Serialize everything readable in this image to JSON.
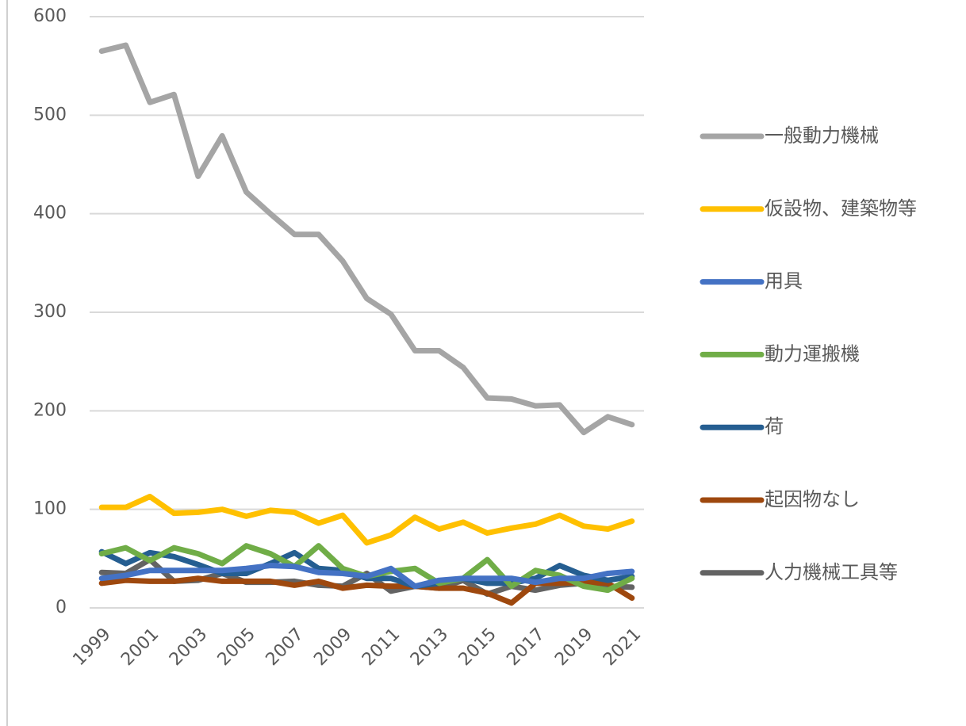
{
  "chart_data": {
    "type": "line",
    "categories": [
      "1999",
      null,
      "2001",
      null,
      "2003",
      null,
      "2005",
      null,
      "2007",
      null,
      "2009",
      null,
      "2011",
      null,
      "2013",
      null,
      "2015",
      null,
      "2017",
      null,
      "2019",
      null,
      "2021"
    ],
    "series": [
      {
        "name": "一般動力機械",
        "color": "#a5a5a5",
        "values": [
          565,
          571,
          513,
          521,
          438,
          479,
          422,
          400,
          379,
          379,
          352,
          314,
          298,
          261,
          261,
          244,
          213,
          212,
          205,
          206,
          178,
          194,
          186
        ]
      },
      {
        "name": "仮設物、建築物等",
        "color": "#ffc000",
        "values": [
          102,
          102,
          113,
          96,
          97,
          100,
          93,
          99,
          97,
          86,
          94,
          66,
          74,
          92,
          80,
          87,
          76,
          81,
          85,
          94,
          83,
          80,
          88
        ]
      },
      {
        "name": "用具",
        "color": "#4472c4",
        "values": [
          30,
          33,
          38,
          38,
          38,
          38,
          40,
          43,
          42,
          36,
          35,
          32,
          40,
          22,
          28,
          30,
          30,
          30,
          26,
          30,
          30,
          35,
          37
        ]
      },
      {
        "name": "動力運搬機",
        "color": "#70ad47",
        "values": [
          55,
          61,
          48,
          61,
          55,
          45,
          63,
          55,
          42,
          63,
          40,
          32,
          37,
          40,
          25,
          30,
          49,
          22,
          38,
          33,
          22,
          18,
          30
        ]
      },
      {
        "name": "荷",
        "color": "#255e91",
        "values": [
          57,
          45,
          56,
          52,
          44,
          35,
          35,
          45,
          56,
          40,
          38,
          30,
          30,
          22,
          25,
          30,
          25,
          25,
          30,
          43,
          33,
          28,
          32
        ]
      },
      {
        "name": "起因物なし",
        "color": "#9e480e",
        "values": [
          25,
          28,
          27,
          27,
          30,
          27,
          27,
          27,
          23,
          27,
          20,
          23,
          22,
          22,
          20,
          20,
          15,
          5,
          25,
          25,
          26,
          25,
          10
        ]
      },
      {
        "name": "人力機械工具等",
        "color": "#636363",
        "values": [
          36,
          35,
          49,
          27,
          28,
          35,
          26,
          26,
          27,
          23,
          22,
          35,
          17,
          22,
          20,
          28,
          14,
          22,
          18,
          23,
          25,
          22,
          21
        ]
      }
    ],
    "ylim": [
      0,
      600
    ],
    "yticks": [
      0,
      100,
      200,
      300,
      400,
      500,
      600
    ],
    "grid": true,
    "legend": "right"
  }
}
